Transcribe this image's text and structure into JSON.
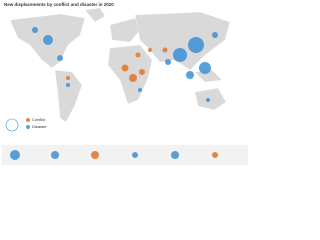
{
  "header": {
    "title": "New displacements by conflict and disaster in 2020"
  },
  "legend": {
    "conflict": "Conflict",
    "disaster": "Disaster"
  }
}
